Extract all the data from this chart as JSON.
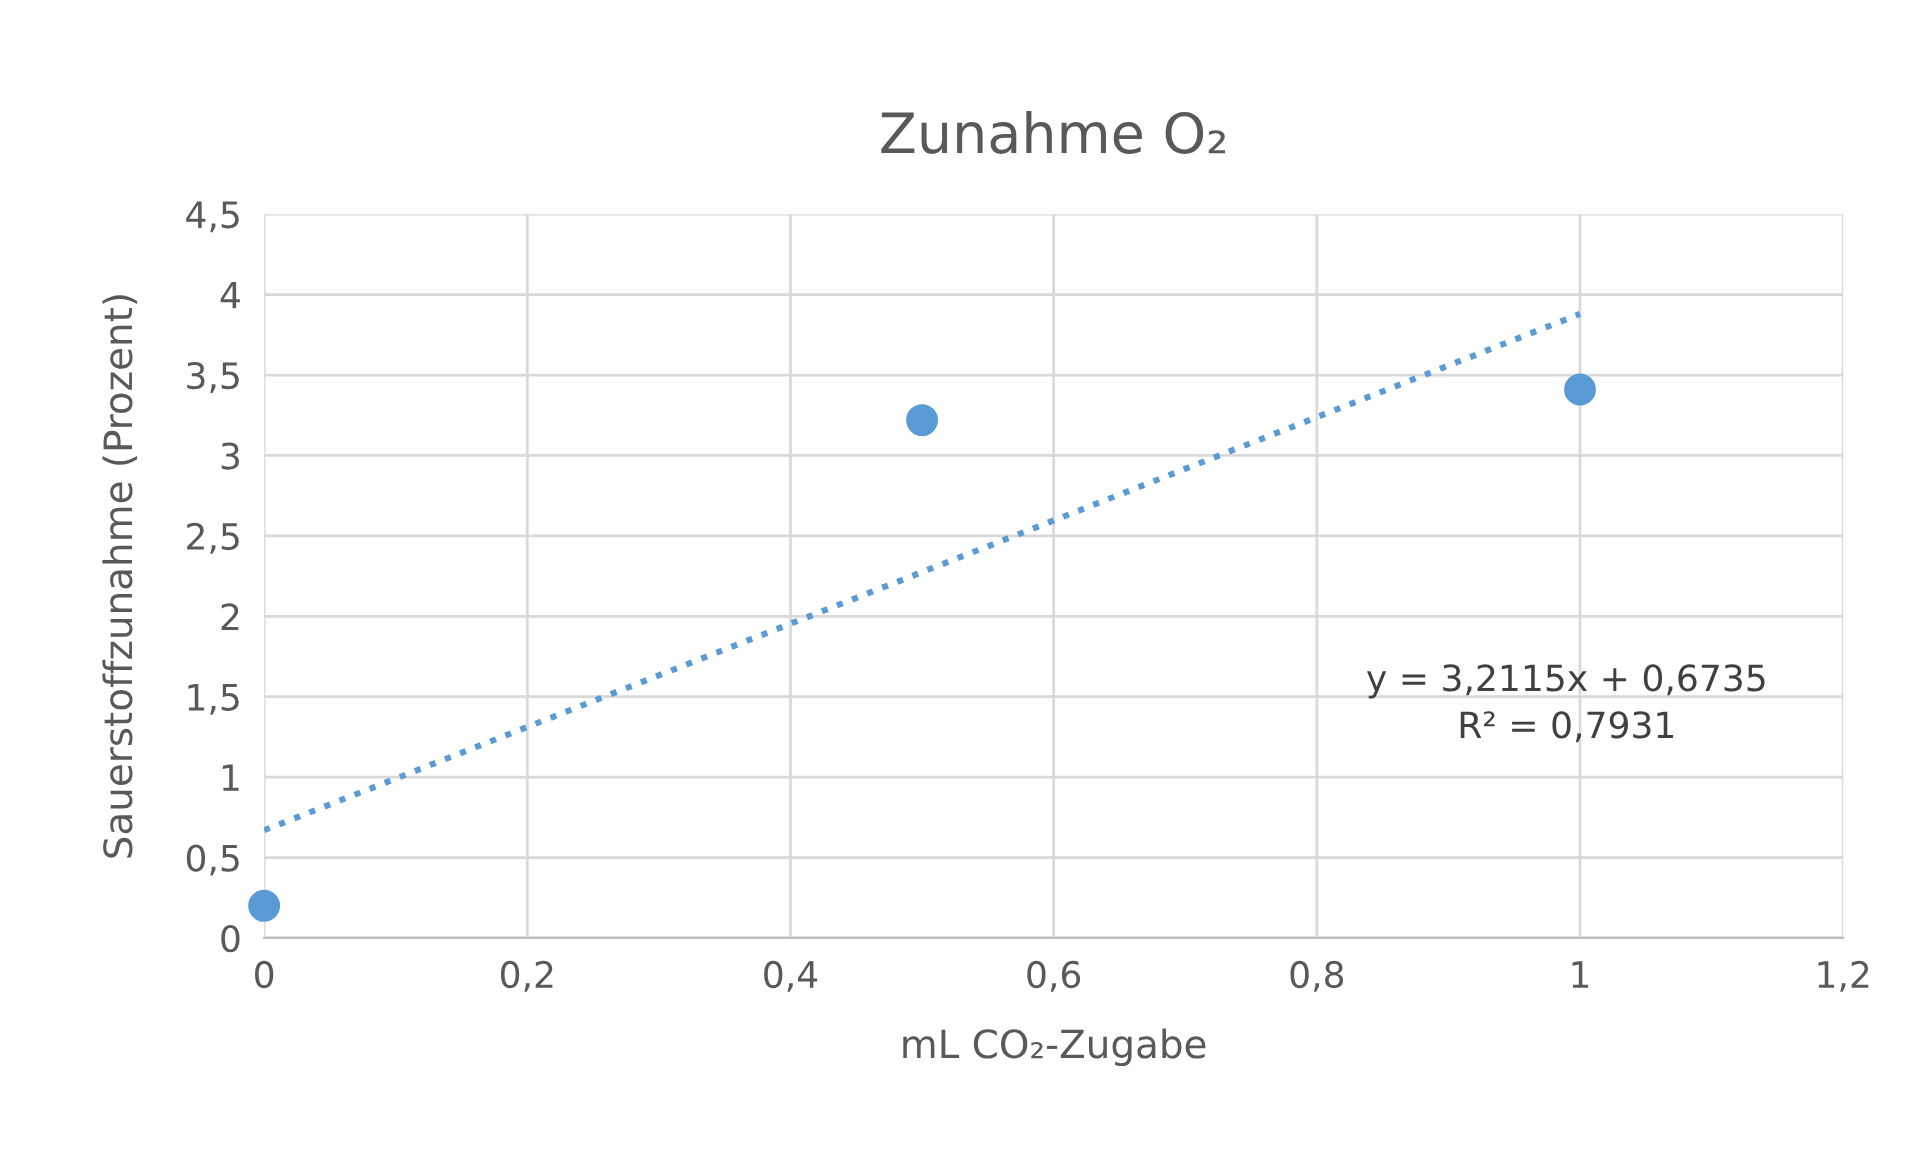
{
  "chart_data": {
    "type": "scatter",
    "title": "Zunahme O₂",
    "xlabel": "mL CO₂-Zugabe",
    "ylabel": "Sauerstoffzunahme (Prozent)",
    "series": [
      {
        "x": [
          0,
          0.5,
          1
        ],
        "values": [
          0.2,
          3.22,
          3.41
        ],
        "color": "#5b9bd5",
        "marker": "circle"
      },
      {
        "type": "line",
        "x": [
          0,
          1
        ],
        "values": [
          0.67,
          3.88
        ],
        "color": "#5b9bd5",
        "line_style": "dotted",
        "marker": "none"
      }
    ],
    "xlim": [
      0,
      1.2
    ],
    "xticks": [
      0,
      {
        "value": 0.2,
        "label": "0,2"
      },
      {
        "value": 0.4,
        "label": "0,4"
      },
      {
        "value": 0.6,
        "label": "0,6"
      },
      {
        "value": 0.8,
        "label": "0,8"
      },
      1,
      {
        "value": 1.2,
        "label": "1,2"
      }
    ],
    "ylim": [
      0,
      4.5
    ],
    "yticks": [
      0,
      {
        "value": 0.5,
        "label": "0,5"
      },
      1,
      {
        "value": 1.5,
        "label": "1,5"
      },
      2,
      {
        "value": 2.5,
        "label": "2,5"
      },
      3,
      {
        "value": 3.5,
        "label": "3,5"
      },
      4,
      {
        "value": 4.5,
        "label": "4,5"
      }
    ],
    "grid": true,
    "annotations": [
      "y = 3,2115x + 0,6735",
      "R² = 0,7931"
    ]
  }
}
